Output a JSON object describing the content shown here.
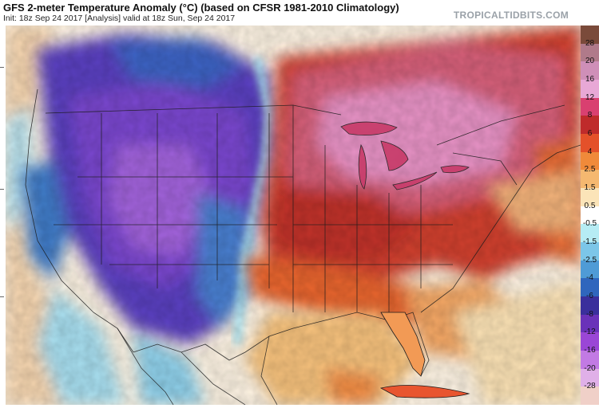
{
  "header": {
    "title": "GFS 2-meter Temperature Anomaly (°C) (based on CFSR 1981-2010 Climatology)",
    "subtitle": "Init: 18z Sep 24 2017   [Analysis]   valid at 18z Sun, Sep 24 2017",
    "brand": "TROPICALTIDBITS.COM"
  },
  "map": {
    "region": "Continental United States, southern Canada, northern Mexico, Gulf of Mexico",
    "pattern": {
      "west": "strong negative anomaly (blue / purple)",
      "east": "strong positive anomaly (red / pink)"
    }
  },
  "legend": {
    "labels": [
      "28",
      "20",
      "16",
      "12",
      "8",
      "6",
      "4",
      "2.5",
      "1.5",
      "0.5",
      "-0.5",
      "-1.5",
      "-2.5",
      "-4",
      "-6",
      "-8",
      "-12",
      "-16",
      "-20",
      "-28"
    ],
    "colors": [
      "#7a4a3a",
      "#b07a8a",
      "#cf8fb8",
      "#e8a8d6",
      "#d94070",
      "#bf2b2b",
      "#e4512a",
      "#f08a3a",
      "#f5b870",
      "#fbe4b8",
      "#ffffff",
      "#b6ecf4",
      "#7cc6e8",
      "#4f9bd6",
      "#2f66bd",
      "#3a2f9c",
      "#6a32b9",
      "#9a46d6",
      "#c27ae4",
      "#e0b0e8",
      "#f0d0c8"
    ]
  }
}
